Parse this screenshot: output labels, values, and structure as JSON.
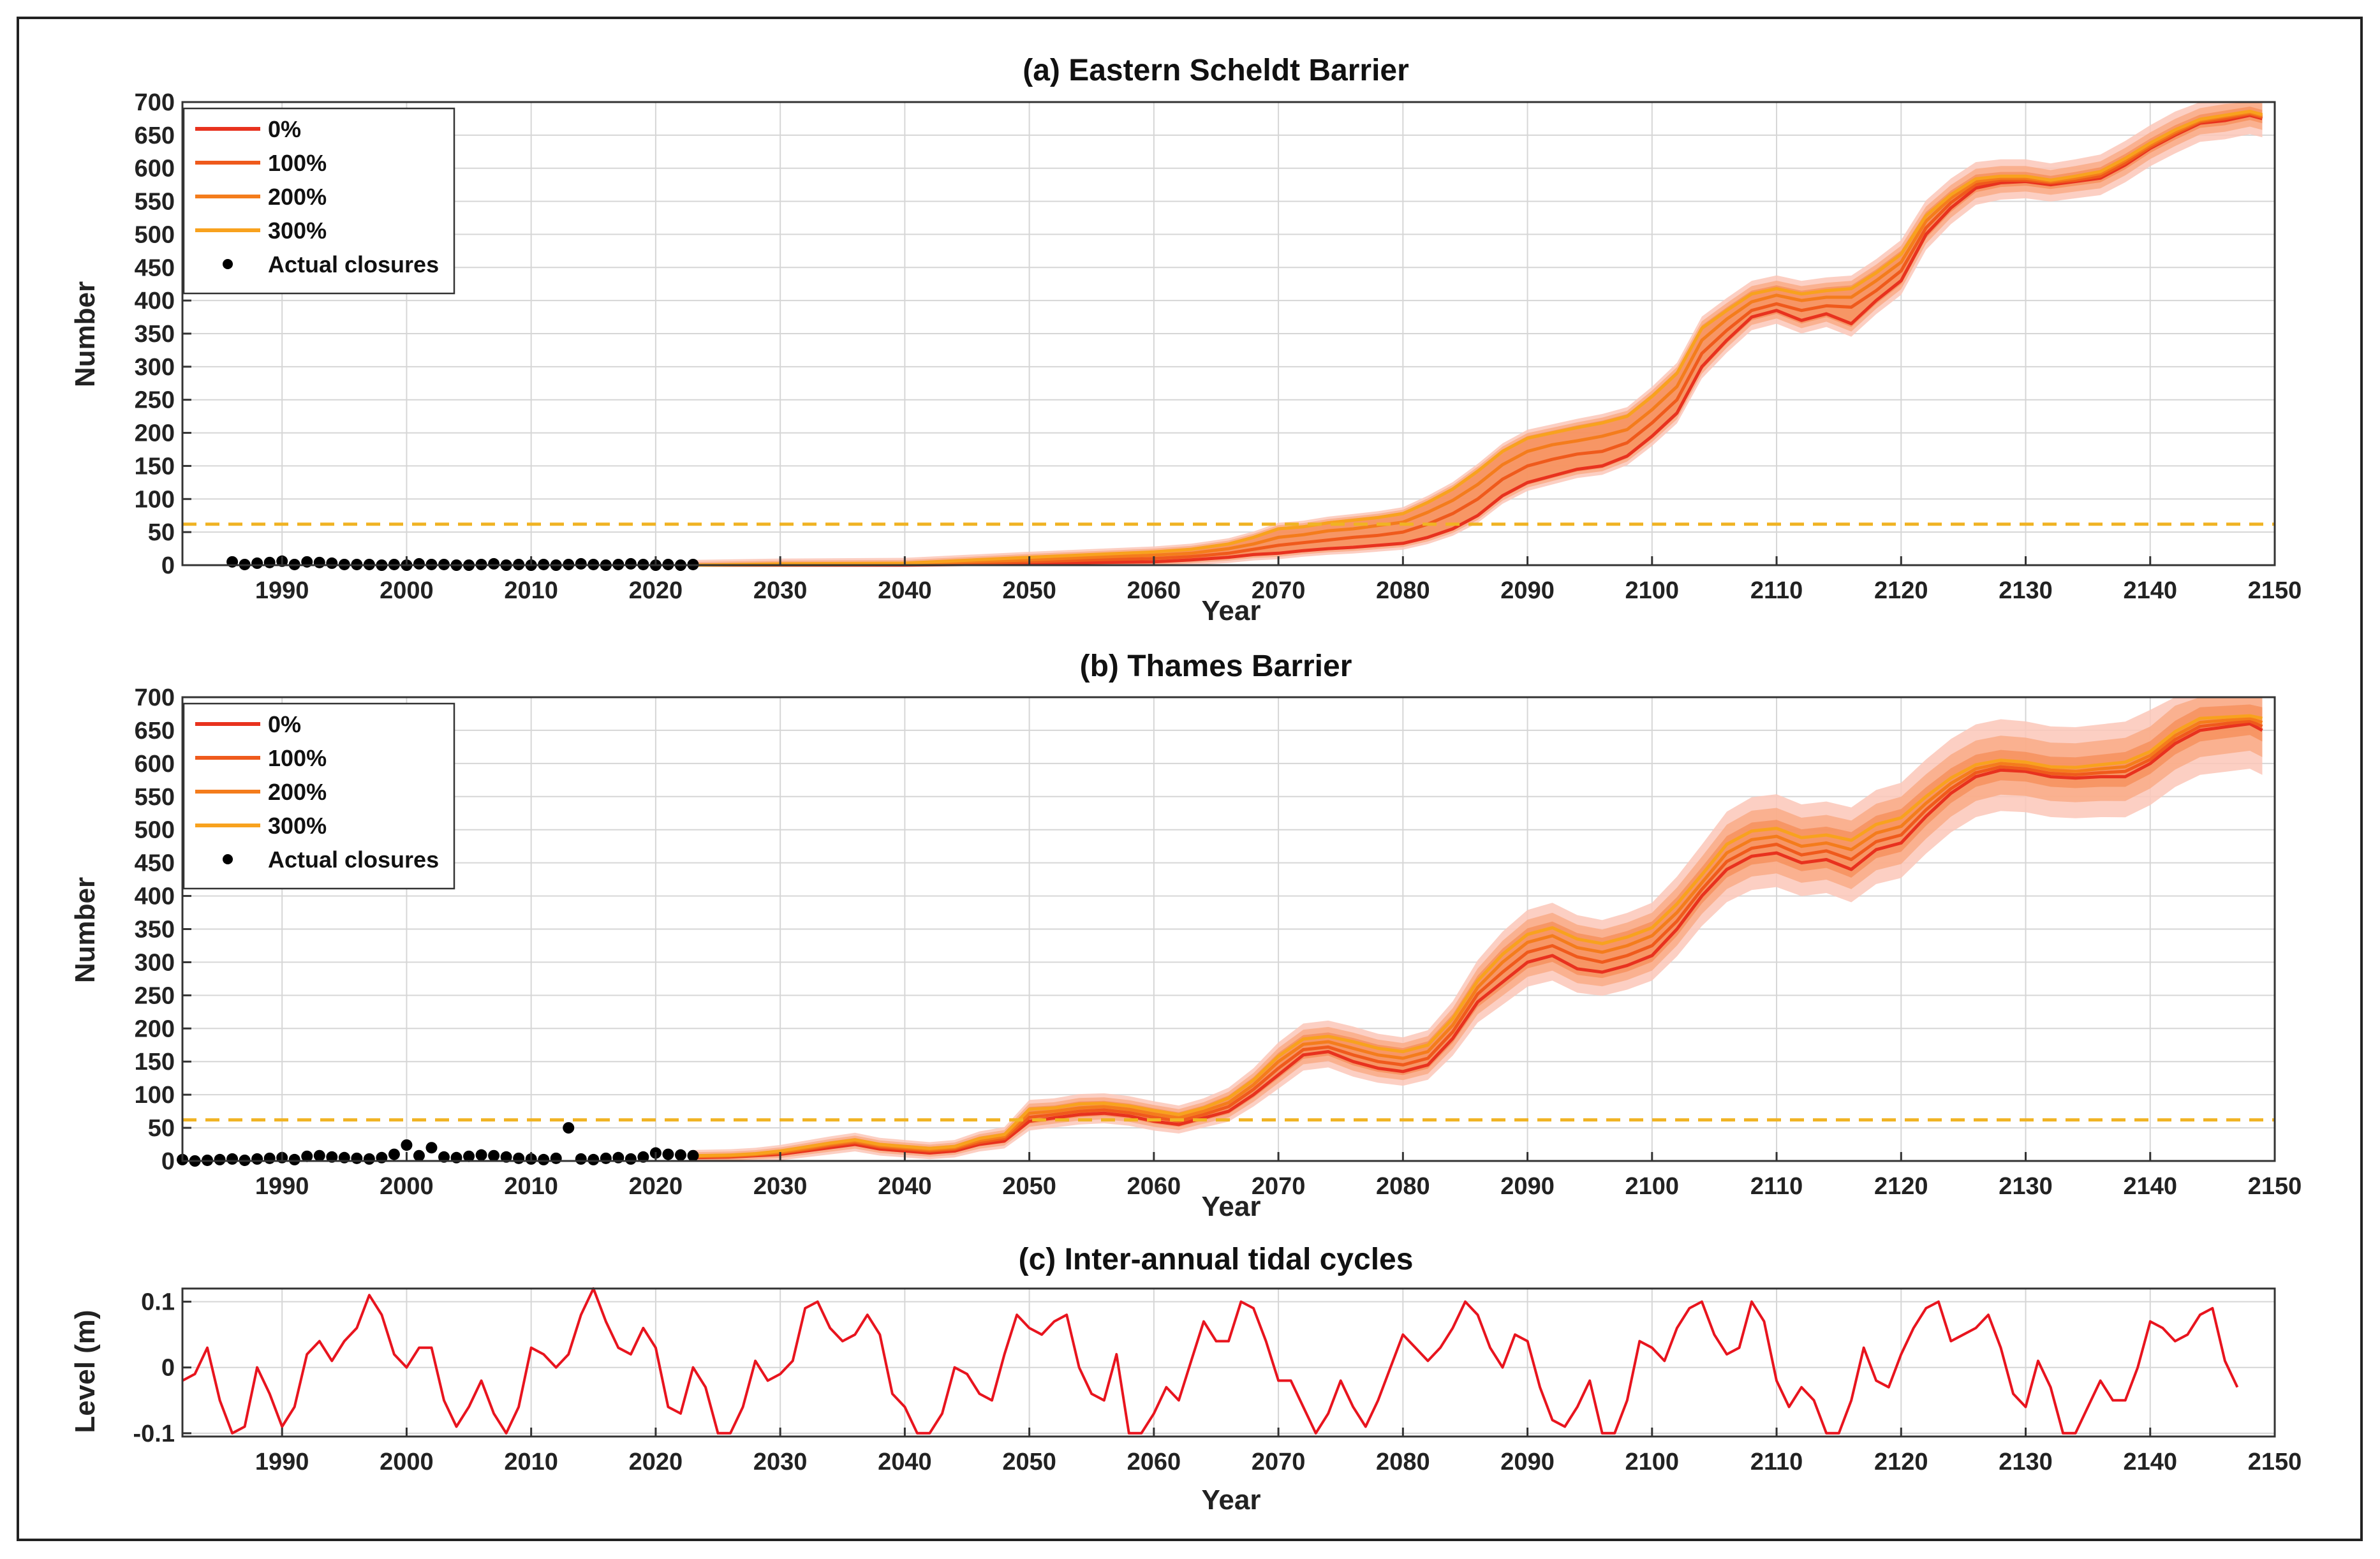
{
  "figure": {
    "panels": [
      {
        "id": "a",
        "title": "(a) Eastern Scheldt  Barrier",
        "xlabel": "Year",
        "ylabel": "Number"
      },
      {
        "id": "b",
        "title": "(b) Thames Barrier",
        "xlabel": "Year",
        "ylabel": "Number"
      },
      {
        "id": "c",
        "title": "(c) Inter-annual tidal cycles",
        "xlabel": "Year",
        "ylabel": "Level (m)"
      }
    ],
    "legend_labels": [
      "0%",
      "100%",
      "200%",
      "300%",
      "Actual closures"
    ]
  },
  "colors": {
    "series_0": "#e8321e",
    "series_100": "#ef5a1c",
    "series_200": "#f47c1c",
    "series_300": "#f8a21e",
    "band_outer": "#fbc7b8",
    "band_mid": "#f9a77f",
    "band_inner": "#f58a52",
    "threshold": "#f0b323",
    "actual": "#000000",
    "tidal": "#e8141e"
  },
  "chart_data": [
    {
      "type": "line",
      "title": "(a) Eastern Scheldt  Barrier",
      "xlabel": "Year",
      "ylabel": "Number",
      "xlim": [
        1982,
        2150
      ],
      "ylim": [
        0,
        700
      ],
      "xticks": [
        1990,
        2000,
        2010,
        2020,
        2030,
        2040,
        2050,
        2060,
        2070,
        2080,
        2090,
        2100,
        2110,
        2120,
        2130,
        2140,
        2150
      ],
      "yticks": [
        0,
        50,
        100,
        150,
        200,
        250,
        300,
        350,
        400,
        450,
        500,
        550,
        600,
        650,
        700
      ],
      "grid": true,
      "legend_position": "top-left",
      "threshold": 62,
      "x_start": 2023,
      "x": [
        2023,
        2030,
        2040,
        2050,
        2055,
        2060,
        2063,
        2066,
        2068,
        2070,
        2072,
        2074,
        2076,
        2078,
        2080,
        2082,
        2084,
        2086,
        2088,
        2090,
        2092,
        2094,
        2096,
        2098,
        2100,
        2102,
        2104,
        2106,
        2108,
        2110,
        2112,
        2114,
        2116,
        2118,
        2120,
        2122,
        2124,
        2126,
        2128,
        2130,
        2132,
        2134,
        2136,
        2138,
        2140,
        2142,
        2144,
        2146,
        2148,
        2149
      ],
      "series": [
        {
          "name": "0%",
          "values": [
            0,
            0,
            0,
            2,
            4,
            5,
            8,
            12,
            16,
            18,
            22,
            25,
            27,
            30,
            33,
            42,
            55,
            75,
            105,
            125,
            135,
            145,
            150,
            165,
            195,
            230,
            300,
            340,
            375,
            385,
            370,
            380,
            365,
            400,
            430,
            500,
            540,
            570,
            578,
            580,
            575,
            580,
            585,
            605,
            630,
            650,
            668,
            672,
            680,
            675
          ]
        },
        {
          "name": "100%",
          "values": [
            0,
            0,
            1,
            5,
            8,
            10,
            13,
            18,
            24,
            30,
            34,
            38,
            42,
            45,
            50,
            62,
            78,
            100,
            130,
            150,
            160,
            168,
            172,
            185,
            215,
            250,
            320,
            355,
            385,
            395,
            385,
            392,
            390,
            415,
            445,
            510,
            548,
            575,
            582,
            582,
            578,
            582,
            588,
            608,
            632,
            652,
            670,
            675,
            682,
            677
          ]
        },
        {
          "name": "200%",
          "values": [
            0,
            1,
            2,
            8,
            12,
            15,
            18,
            25,
            32,
            42,
            46,
            52,
            55,
            60,
            65,
            80,
            98,
            122,
            152,
            172,
            182,
            188,
            195,
            205,
            235,
            270,
            340,
            372,
            398,
            408,
            400,
            405,
            405,
            430,
            458,
            520,
            555,
            580,
            585,
            585,
            580,
            585,
            592,
            612,
            635,
            655,
            672,
            678,
            684,
            679
          ]
        },
        {
          "name": "300%",
          "values": [
            0,
            2,
            3,
            12,
            16,
            20,
            24,
            32,
            42,
            55,
            58,
            64,
            68,
            72,
            78,
            95,
            115,
            142,
            172,
            192,
            200,
            208,
            215,
            225,
            255,
            290,
            358,
            385,
            410,
            418,
            410,
            415,
            418,
            442,
            470,
            528,
            560,
            584,
            588,
            588,
            582,
            588,
            595,
            615,
            638,
            658,
            674,
            680,
            686,
            681
          ]
        }
      ],
      "actual_closures": {
        "name": "Actual closures",
        "x": [
          1986,
          1987,
          1988,
          1989,
          1990,
          1991,
          1992,
          1993,
          1994,
          1995,
          1996,
          1997,
          1998,
          1999,
          2000,
          2001,
          2002,
          2003,
          2004,
          2005,
          2006,
          2007,
          2008,
          2009,
          2010,
          2011,
          2012,
          2013,
          2014,
          2015,
          2016,
          2017,
          2018,
          2019,
          2020,
          2021,
          2022,
          2023
        ],
        "values": [
          5,
          1,
          3,
          4,
          6,
          1,
          5,
          4,
          3,
          1,
          1,
          1,
          0,
          1,
          0,
          2,
          1,
          1,
          0,
          0,
          1,
          2,
          0,
          1,
          0,
          1,
          0,
          1,
          2,
          1,
          0,
          1,
          2,
          1,
          0,
          1,
          0,
          1
        ]
      }
    },
    {
      "type": "line",
      "title": "(b) Thames Barrier",
      "xlabel": "Year",
      "ylabel": "Number",
      "xlim": [
        1982,
        2150
      ],
      "ylim": [
        0,
        700
      ],
      "xticks": [
        1990,
        2000,
        2010,
        2020,
        2030,
        2040,
        2050,
        2060,
        2070,
        2080,
        2090,
        2100,
        2110,
        2120,
        2130,
        2140,
        2150
      ],
      "yticks": [
        0,
        50,
        100,
        150,
        200,
        250,
        300,
        350,
        400,
        450,
        500,
        550,
        600,
        650,
        700
      ],
      "grid": true,
      "legend_position": "top-left",
      "threshold": 62,
      "x_start": 2023,
      "x": [
        2023,
        2026,
        2028,
        2030,
        2032,
        2034,
        2036,
        2038,
        2040,
        2042,
        2044,
        2046,
        2048,
        2050,
        2052,
        2054,
        2056,
        2058,
        2060,
        2062,
        2064,
        2066,
        2068,
        2070,
        2072,
        2074,
        2076,
        2078,
        2080,
        2082,
        2084,
        2086,
        2088,
        2090,
        2092,
        2094,
        2096,
        2098,
        2100,
        2102,
        2104,
        2106,
        2108,
        2110,
        2112,
        2114,
        2116,
        2118,
        2120,
        2122,
        2124,
        2126,
        2128,
        2130,
        2132,
        2134,
        2136,
        2138,
        2140,
        2142,
        2144,
        2146,
        2148,
        2149
      ],
      "series": [
        {
          "name": "0%",
          "values": [
            5,
            6,
            8,
            10,
            15,
            20,
            25,
            18,
            15,
            12,
            15,
            25,
            30,
            60,
            65,
            70,
            72,
            68,
            60,
            55,
            65,
            75,
            100,
            130,
            160,
            165,
            150,
            140,
            135,
            145,
            185,
            240,
            270,
            300,
            310,
            290,
            285,
            295,
            310,
            350,
            400,
            440,
            460,
            465,
            450,
            455,
            440,
            470,
            480,
            520,
            555,
            580,
            590,
            588,
            580,
            578,
            580,
            580,
            600,
            630,
            650,
            655,
            660,
            650
          ]
        },
        {
          "name": "100%",
          "values": [
            6,
            7,
            9,
            12,
            17,
            23,
            28,
            21,
            18,
            15,
            18,
            28,
            34,
            66,
            70,
            75,
            77,
            73,
            66,
            60,
            70,
            82,
            108,
            140,
            168,
            172,
            160,
            150,
            145,
            155,
            195,
            252,
            285,
            315,
            325,
            308,
            300,
            310,
            325,
            362,
            410,
            452,
            472,
            478,
            462,
            468,
            455,
            482,
            492,
            530,
            562,
            586,
            595,
            592,
            585,
            583,
            586,
            588,
            606,
            636,
            656,
            660,
            664,
            656
          ]
        },
        {
          "name": "200%",
          "values": [
            7,
            8,
            10,
            13,
            19,
            25,
            30,
            23,
            20,
            17,
            20,
            31,
            37,
            72,
            75,
            80,
            82,
            78,
            71,
            65,
            75,
            88,
            115,
            150,
            176,
            180,
            170,
            160,
            155,
            165,
            205,
            262,
            300,
            330,
            340,
            322,
            315,
            325,
            340,
            375,
            420,
            465,
            485,
            490,
            475,
            480,
            470,
            495,
            505,
            540,
            570,
            592,
            600,
            597,
            590,
            588,
            592,
            595,
            612,
            642,
            662,
            665,
            668,
            662
          ]
        },
        {
          "name": "300%",
          "values": [
            8,
            9,
            11,
            15,
            21,
            27,
            32,
            25,
            22,
            19,
            22,
            34,
            40,
            78,
            80,
            86,
            87,
            83,
            76,
            70,
            80,
            95,
            122,
            158,
            184,
            188,
            180,
            170,
            165,
            175,
            215,
            272,
            312,
            342,
            352,
            335,
            328,
            338,
            352,
            388,
            432,
            478,
            498,
            502,
            488,
            492,
            484,
            508,
            518,
            550,
            578,
            598,
            605,
            602,
            595,
            594,
            598,
            602,
            618,
            648,
            668,
            670,
            672,
            668
          ]
        }
      ],
      "actual_closures": {
        "name": "Actual closures",
        "x": [
          1982,
          1983,
          1984,
          1985,
          1986,
          1987,
          1988,
          1989,
          1990,
          1991,
          1992,
          1993,
          1994,
          1995,
          1996,
          1997,
          1998,
          1999,
          2000,
          2001,
          2002,
          2003,
          2004,
          2005,
          2006,
          2007,
          2008,
          2009,
          2010,
          2011,
          2012,
          2013,
          2014,
          2015,
          2016,
          2017,
          2018,
          2019,
          2020,
          2021,
          2022,
          2023
        ],
        "values": [
          2,
          0,
          1,
          2,
          3,
          1,
          3,
          4,
          5,
          2,
          7,
          8,
          6,
          5,
          4,
          3,
          5,
          10,
          24,
          8,
          20,
          6,
          5,
          7,
          9,
          8,
          6,
          4,
          3,
          2,
          4,
          50,
          3,
          2,
          4,
          5,
          3,
          6,
          12,
          10,
          9,
          8
        ]
      }
    },
    {
      "type": "line",
      "title": "(c) Inter-annual tidal cycles",
      "xlabel": "Year",
      "ylabel": "Level (m)",
      "xlim": [
        1982,
        2150
      ],
      "ylim": [
        -0.105,
        0.12
      ],
      "xticks": [
        1990,
        2000,
        2010,
        2020,
        2030,
        2040,
        2050,
        2060,
        2070,
        2080,
        2090,
        2100,
        2110,
        2120,
        2130,
        2140,
        2150
      ],
      "yticks": [
        -0.1,
        0,
        0.1
      ],
      "ytick_labels": [
        "-0.1",
        "0",
        "0.1"
      ],
      "grid": true,
      "series": [
        {
          "name": "tidal cycle",
          "x_start": 1982,
          "x_step": 1,
          "values": [
            -0.02,
            -0.01,
            0.03,
            -0.05,
            -0.1,
            -0.09,
            0.0,
            -0.04,
            -0.09,
            -0.06,
            0.02,
            0.04,
            0.01,
            0.04,
            0.06,
            0.11,
            0.08,
            0.02,
            0.0,
            0.03,
            0.03,
            -0.05,
            -0.09,
            -0.06,
            -0.02,
            -0.07,
            -0.1,
            -0.06,
            0.03,
            0.02,
            0.0,
            0.02,
            0.08,
            0.12,
            0.07,
            0.03,
            0.02,
            0.06,
            0.03,
            -0.06,
            -0.07,
            0.0,
            -0.03,
            -0.1,
            -0.1,
            -0.06,
            0.01,
            -0.02,
            -0.01,
            0.01,
            0.09,
            0.1,
            0.06,
            0.04,
            0.05,
            0.08,
            0.05,
            -0.04,
            -0.06,
            -0.1,
            -0.1,
            -0.07,
            0.0,
            -0.01,
            -0.04,
            -0.05,
            0.02,
            0.08,
            0.06,
            0.05,
            0.07,
            0.08,
            0.0,
            -0.04,
            -0.05,
            0.02,
            -0.1,
            -0.1,
            -0.07,
            -0.03,
            -0.05,
            0.01,
            0.07,
            0.04,
            0.04,
            0.1,
            0.09,
            0.04,
            -0.02,
            -0.02,
            -0.06,
            -0.1,
            -0.07,
            -0.02,
            -0.06,
            -0.09,
            -0.05,
            0.0,
            0.05,
            0.03,
            0.01,
            0.03,
            0.06,
            0.1,
            0.08,
            0.03,
            0.0,
            0.05,
            0.04,
            -0.03,
            -0.08,
            -0.09,
            -0.06,
            -0.02,
            -0.1,
            -0.1,
            -0.05,
            0.04,
            0.03,
            0.01,
            0.06,
            0.09,
            0.1,
            0.05,
            0.02,
            0.03,
            0.1,
            0.07,
            -0.02,
            -0.06,
            -0.03,
            -0.05,
            -0.1,
            -0.1,
            -0.05,
            0.03,
            -0.02,
            -0.03,
            0.02,
            0.06,
            0.09,
            0.1,
            0.04,
            0.05,
            0.06,
            0.08,
            0.03,
            -0.04,
            -0.06,
            0.01,
            -0.03,
            -0.1,
            -0.1,
            -0.06,
            -0.02,
            -0.05,
            -0.05,
            0.0,
            0.07,
            0.06,
            0.04,
            0.05,
            0.08,
            0.09,
            0.01,
            -0.03
          ]
        }
      ]
    }
  ]
}
